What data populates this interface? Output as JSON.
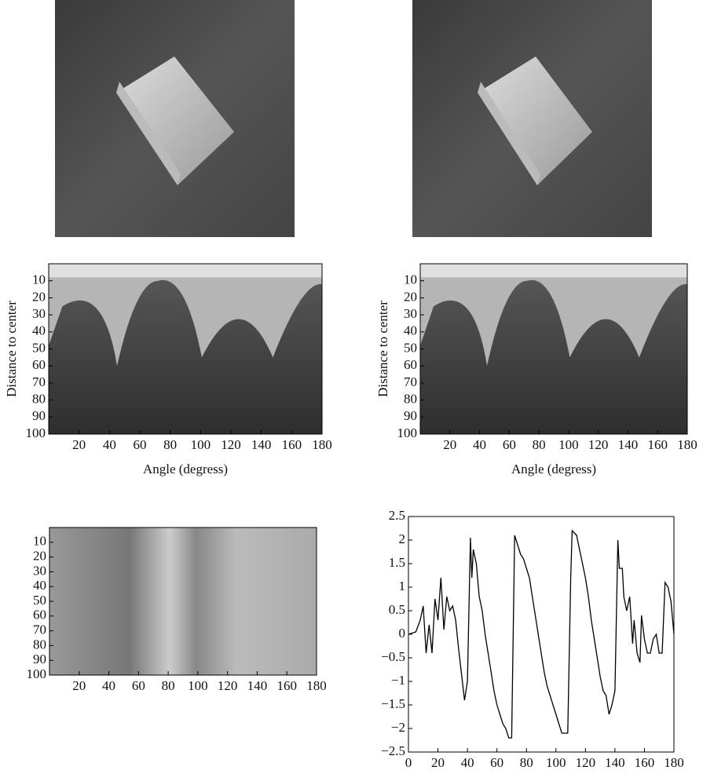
{
  "chart_data": [
    {
      "type": "image",
      "xlabel": "Angle (degress)",
      "ylabel": "Distance to center",
      "xlim": [
        0,
        180
      ],
      "ylim": [
        0,
        100
      ],
      "y_reversed": true,
      "xticks": [
        20,
        40,
        60,
        80,
        100,
        120,
        140,
        160,
        180
      ],
      "yticks": [
        10,
        20,
        30,
        40,
        50,
        60,
        70,
        80,
        90,
        100
      ]
    },
    {
      "type": "image",
      "xlabel": "Angle (degress)",
      "ylabel": "Distance to center",
      "xlim": [
        0,
        180
      ],
      "ylim": [
        0,
        100
      ],
      "y_reversed": true,
      "xticks": [
        20,
        40,
        60,
        80,
        100,
        120,
        140,
        160,
        180
      ],
      "yticks": [
        10,
        20,
        30,
        40,
        50,
        60,
        70,
        80,
        90,
        100
      ]
    },
    {
      "type": "image",
      "xlim": [
        0,
        180
      ],
      "ylim": [
        0,
        100
      ],
      "y_reversed": true,
      "xticks": [
        20,
        40,
        60,
        80,
        100,
        120,
        140,
        160,
        180
      ],
      "yticks": [
        10,
        20,
        30,
        40,
        50,
        60,
        70,
        80,
        90,
        100
      ]
    },
    {
      "type": "line",
      "color": "#000000",
      "xlim": [
        0,
        180
      ],
      "ylim": [
        -2.5,
        2.5
      ],
      "xticks": [
        0,
        20,
        40,
        60,
        80,
        100,
        120,
        140,
        160,
        180
      ],
      "yticks": [
        {
          "value": -2.5,
          "label": "−2.5"
        },
        {
          "value": -2,
          "label": "−2"
        },
        {
          "value": -1.5,
          "label": "−1.5"
        },
        {
          "value": -1,
          "label": "−1"
        },
        {
          "value": -0.5,
          "label": "−0.5"
        },
        0,
        0.5,
        1,
        1.5,
        2,
        2.5
      ],
      "x": [
        0,
        5,
        8,
        10,
        12,
        14,
        16,
        18,
        20,
        22,
        24,
        26,
        28,
        30,
        32,
        34,
        36,
        38,
        40,
        42,
        43,
        44,
        46,
        48,
        50,
        52,
        54,
        56,
        58,
        60,
        62,
        64,
        66,
        68,
        70,
        72,
        74,
        76,
        78,
        80,
        82,
        84,
        86,
        88,
        90,
        92,
        94,
        96,
        98,
        100,
        102,
        104,
        106,
        108,
        110,
        111,
        114,
        116,
        118,
        120,
        122,
        124,
        126,
        128,
        130,
        132,
        134,
        136,
        138,
        140,
        142,
        143,
        145,
        146,
        148,
        150,
        152,
        153,
        155,
        157,
        158,
        160,
        162,
        164,
        166,
        168,
        170,
        172,
        174,
        176,
        178,
        180
      ],
      "values": [
        0,
        0.05,
        0.3,
        0.6,
        -0.4,
        0.2,
        -0.4,
        0.75,
        0.3,
        1.2,
        0.1,
        0.8,
        0.5,
        0.6,
        0.3,
        -0.3,
        -0.85,
        -1.4,
        -1.0,
        2.05,
        1.2,
        1.8,
        1.5,
        0.8,
        0.5,
        0,
        -0.4,
        -0.8,
        -1.2,
        -1.5,
        -1.7,
        -1.9,
        -2.0,
        -2.2,
        -2.2,
        2.1,
        1.9,
        1.7,
        1.6,
        1.4,
        1.2,
        0.8,
        0.4,
        0,
        -0.4,
        -0.8,
        -1.1,
        -1.3,
        -1.5,
        -1.7,
        -1.9,
        -2.1,
        -2.1,
        -2.1,
        1.2,
        2.2,
        2.1,
        1.8,
        1.5,
        1.2,
        0.8,
        0.3,
        -0.1,
        -0.5,
        -0.9,
        -1.2,
        -1.3,
        -1.7,
        -1.5,
        -1.2,
        2.0,
        1.4,
        1.4,
        0.8,
        0.5,
        0.8,
        -0.2,
        0.3,
        -0.4,
        -0.6,
        0.4,
        -0.1,
        -0.4,
        -0.4,
        -0.1,
        0,
        -0.4,
        -0.4,
        1.1,
        1.0,
        0.7,
        0
      ]
    }
  ]
}
